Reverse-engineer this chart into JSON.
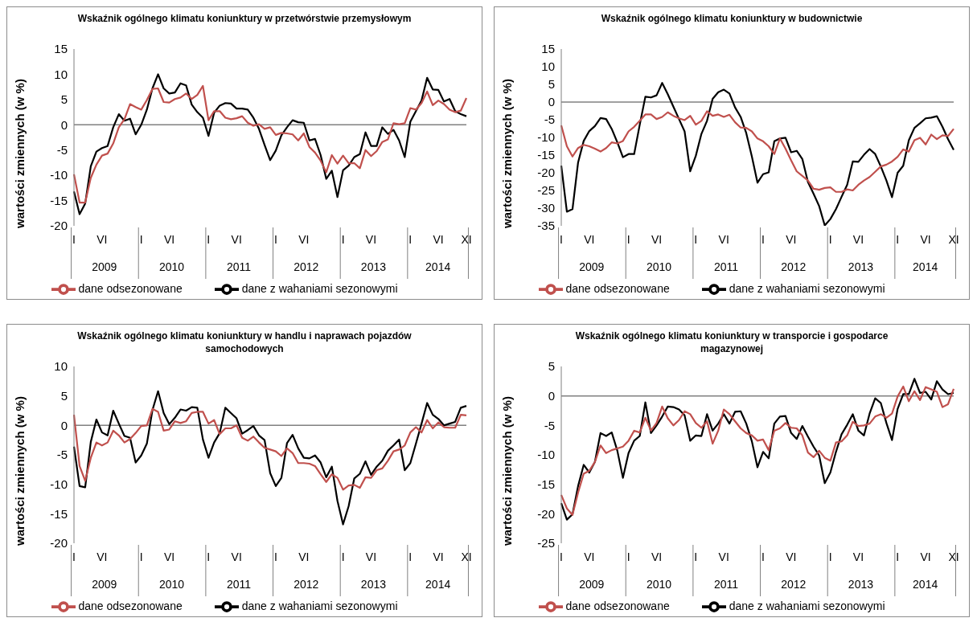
{
  "chart_data": [
    {
      "type": "line",
      "title": "Wskaźnik ogólnego klimatu koniunktury w przetwórstwie przemysłowym",
      "ylabel": "wartości zmiennych (w %)",
      "categories": [
        "I",
        null,
        null,
        null,
        null,
        "VI",
        null,
        null,
        null,
        null,
        null,
        null,
        "I",
        null,
        null,
        null,
        null,
        "VI",
        null,
        null,
        null,
        null,
        null,
        null,
        "I",
        null,
        null,
        null,
        null,
        "VI",
        null,
        null,
        null,
        null,
        null,
        null,
        "I",
        null,
        null,
        null,
        null,
        "VI",
        null,
        null,
        null,
        null,
        null,
        null,
        "I",
        null,
        null,
        null,
        null,
        "VI",
        null,
        null,
        null,
        null,
        null,
        null,
        "I",
        null,
        null,
        null,
        null,
        "VI",
        null,
        null,
        null,
        null,
        "XI"
      ],
      "annotations": [
        "2009",
        "2010",
        "2011",
        "2012",
        "2013",
        "2014"
      ],
      "series": [
        {
          "name": "dane z wahaniami sezonowymi",
          "color": "#000000",
          "values": [
            -13.2,
            -17.7,
            -15.6,
            -8.2,
            -5.3,
            -4.6,
            -4.2,
            -0.5,
            2.1,
            0.8,
            1.2,
            -1.9,
            0,
            3.0,
            7.2,
            10.0,
            7.2,
            6.2,
            6.4,
            8.2,
            7.8,
            4.0,
            2.5,
            1.4,
            -2.2,
            2.4,
            3.8,
            4.3,
            4.2,
            3.2,
            3.2,
            3.0,
            1.4,
            -0.8,
            -4.0,
            -7.0,
            -5.1,
            -2.1,
            -0.5,
            0.9,
            0.5,
            0.4,
            -3.1,
            -2.8,
            -6.0,
            -10.7,
            -9.1,
            -14.3,
            -9.0,
            -8.1,
            -6.4,
            -5.8,
            -1.5,
            -4.2,
            -4.2,
            -0.5,
            -1.8,
            -1.0,
            -3.1,
            -6.4,
            0.6,
            2.7,
            4.8,
            9.3,
            7.0,
            6.9,
            4.6,
            5.1,
            2.7,
            2.1,
            1.7
          ]
        },
        {
          "name": "dane odsezonowane",
          "color": "#c0504d",
          "values": [
            -9.8,
            -15.4,
            -15.4,
            -10.5,
            -7.9,
            -6.1,
            -5.7,
            -3.7,
            -0.5,
            1.1,
            4.1,
            3.5,
            3.0,
            4.9,
            7.1,
            7.2,
            4.5,
            4.4,
            5.1,
            5.4,
            6.2,
            5.1,
            5.9,
            7.7,
            0.9,
            2.7,
            2.7,
            1.4,
            1.1,
            1.3,
            1.7,
            0.4,
            -0.2,
            0.1,
            -0.8,
            -0.5,
            -2.0,
            -1.6,
            -1.7,
            -1.9,
            -3.1,
            -1.7,
            -4.4,
            -5.5,
            -7.1,
            -9.4,
            -6.0,
            -7.7,
            -6.1,
            -7.6,
            -7.6,
            -8.6,
            -5.0,
            -6.2,
            -5.2,
            -3.4,
            -2.9,
            0.3,
            0.1,
            0.3,
            3.3,
            3.0,
            4.3,
            6.6,
            3.9,
            4.8,
            4.1,
            3.0,
            2.5,
            2.8,
            5.3
          ]
        }
      ],
      "ylim": [
        -20,
        15
      ],
      "yticks": [
        -20,
        -15,
        -10,
        -5,
        0,
        5,
        10,
        15
      ],
      "legend": "bottom",
      "ref_lines": [
        {
          "axis": "y",
          "value": 0,
          "color": "#808080"
        }
      ]
    },
    {
      "type": "line",
      "title": "Wskaźnik ogólnego klimatu koniunktury w budownictwie",
      "ylabel": "wartości zmiennych (w %)",
      "categories": [
        "I",
        null,
        null,
        null,
        null,
        "VI",
        null,
        null,
        null,
        null,
        null,
        null,
        "I",
        null,
        null,
        null,
        null,
        "VI",
        null,
        null,
        null,
        null,
        null,
        null,
        "I",
        null,
        null,
        null,
        null,
        "VI",
        null,
        null,
        null,
        null,
        null,
        null,
        "I",
        null,
        null,
        null,
        null,
        "VI",
        null,
        null,
        null,
        null,
        null,
        null,
        "I",
        null,
        null,
        null,
        null,
        "VI",
        null,
        null,
        null,
        null,
        null,
        null,
        "I",
        null,
        null,
        null,
        null,
        "VI",
        null,
        null,
        null,
        null,
        "XI"
      ],
      "annotations": [
        "2009",
        "2010",
        "2011",
        "2012",
        "2013",
        "2014"
      ],
      "series": [
        {
          "name": "dane z wahaniami sezonowymi",
          "color": "#000000",
          "values": [
            -18.0,
            -31.0,
            -30.3,
            -17.1,
            -11.0,
            -8.2,
            -6.8,
            -4.5,
            -4.8,
            -7.6,
            -11.4,
            -15.6,
            -14.7,
            -14.7,
            -6.4,
            1.5,
            1.3,
            1.9,
            5.4,
            2.2,
            -1.3,
            -4.8,
            -8.3,
            -19.6,
            -15.2,
            -9.0,
            -5.3,
            0.9,
            2.8,
            3.5,
            2.4,
            -1.5,
            -4.2,
            -8.8,
            -15.4,
            -22.8,
            -20.4,
            -19.9,
            -11.1,
            -10.3,
            -10.1,
            -14.2,
            -13.8,
            -16.1,
            -22.6,
            -25.9,
            -29.4,
            -34.9,
            -33.1,
            -30.3,
            -26.8,
            -23.4,
            -16.8,
            -16.9,
            -14.9,
            -13.3,
            -14.7,
            -18.2,
            -22.2,
            -26.9,
            -20.0,
            -18.0,
            -10.8,
            -7.3,
            -6.0,
            -4.6,
            -4.4,
            -4.0,
            -7.0,
            -10.5,
            -13.5
          ]
        },
        {
          "name": "dane odsezonowane",
          "color": "#c0504d",
          "values": [
            -6.6,
            -12.5,
            -15.4,
            -13.0,
            -12.1,
            -12.5,
            -13.2,
            -14.0,
            -13.0,
            -11.4,
            -11.7,
            -11.0,
            -8.3,
            -7.0,
            -5.3,
            -3.5,
            -3.5,
            -4.8,
            -4.2,
            -2.9,
            -3.9,
            -4.6,
            -5.1,
            -3.9,
            -6.4,
            -5.3,
            -2.6,
            -3.9,
            -3.5,
            -4.2,
            -3.6,
            -5.7,
            -7.2,
            -7.3,
            -8.3,
            -10.3,
            -11.1,
            -12.5,
            -14.7,
            -10.3,
            -13.2,
            -16.5,
            -19.6,
            -20.9,
            -22.2,
            -24.5,
            -24.8,
            -24.3,
            -24.1,
            -25.4,
            -25.4,
            -24.7,
            -25.0,
            -23.4,
            -22.2,
            -21.2,
            -19.7,
            -18.2,
            -17.7,
            -16.8,
            -15.5,
            -13.4,
            -14.0,
            -10.8,
            -10.1,
            -12.0,
            -9.2,
            -10.5,
            -9.4,
            -9.6,
            -7.6
          ]
        }
      ],
      "ylim": [
        -35,
        15
      ],
      "yticks": [
        -35,
        -30,
        -25,
        -20,
        -15,
        -10,
        -5,
        0,
        5,
        10,
        15
      ],
      "legend": "bottom",
      "ref_lines": [
        {
          "axis": "y",
          "value": 0,
          "color": "#808080"
        }
      ]
    },
    {
      "type": "line",
      "title": "Wskaźnik ogólnego klimatu koniunktury w handlu i naprawach pojazdów samochodowych",
      "ylabel": "wartości zmiennych (w %)",
      "categories": [
        "I",
        null,
        null,
        null,
        null,
        "VI",
        null,
        null,
        null,
        null,
        null,
        null,
        "I",
        null,
        null,
        null,
        null,
        "VI",
        null,
        null,
        null,
        null,
        null,
        null,
        "I",
        null,
        null,
        null,
        null,
        "VI",
        null,
        null,
        null,
        null,
        null,
        null,
        "I",
        null,
        null,
        null,
        null,
        "VI",
        null,
        null,
        null,
        null,
        null,
        null,
        "I",
        null,
        null,
        null,
        null,
        "VI",
        null,
        null,
        null,
        null,
        null,
        null,
        "I",
        null,
        null,
        null,
        null,
        "VI",
        null,
        null,
        null,
        null,
        "XI"
      ],
      "annotations": [
        "2009",
        "2010",
        "2011",
        "2012",
        "2013",
        "2014"
      ],
      "series": [
        {
          "name": "dane z wahaniami sezonowymi",
          "color": "#000000",
          "values": [
            -3.6,
            -10.3,
            -10.5,
            -2.8,
            1.0,
            -1.2,
            -1.7,
            2.5,
            0.3,
            -1.8,
            -2.1,
            -6.3,
            -5.1,
            -3.1,
            2.6,
            5.8,
            2.1,
            0.2,
            1.3,
            2.7,
            2.5,
            3.1,
            3.0,
            -2.4,
            -5.5,
            -2.9,
            -1.3,
            3.0,
            2.1,
            1.2,
            -1.4,
            -0.8,
            -0.1,
            -1.7,
            -2.5,
            -8.1,
            -10.3,
            -8.9,
            -3.0,
            -1.6,
            -3.9,
            -5.5,
            -5.6,
            -5.1,
            -6.3,
            -8.8,
            -7.0,
            -12.8,
            -16.8,
            -13.7,
            -9.0,
            -8.2,
            -6.1,
            -8.4,
            -7.0,
            -6.0,
            -4.3,
            -3.4,
            -2.4,
            -7.6,
            -6.4,
            -3.1,
            0.3,
            3.8,
            1.8,
            1.1,
            0.0,
            0.3,
            0.6,
            3.0,
            3.3
          ]
        },
        {
          "name": "dane odsezonowane",
          "color": "#c0504d",
          "values": [
            1.8,
            -6.9,
            -9.4,
            -5.5,
            -2.9,
            -3.4,
            -2.9,
            -0.9,
            -1.7,
            -2.9,
            -2.3,
            -1.3,
            -0.1,
            0,
            2.8,
            2.3,
            -0.9,
            -0.7,
            0.7,
            0.4,
            0.7,
            2.1,
            2.3,
            2.3,
            0.3,
            0.9,
            -1.5,
            -0.5,
            -0.5,
            0,
            -2.1,
            -2.6,
            -1.9,
            -2.9,
            -3.8,
            -4.1,
            -4.4,
            -5.2,
            -3.9,
            -4.7,
            -6.4,
            -6.4,
            -6.5,
            -6.9,
            -8.3,
            -9.6,
            -8.3,
            -8.9,
            -10.9,
            -10.2,
            -10.1,
            -10.6,
            -8.8,
            -8.9,
            -7.6,
            -7.3,
            -6.0,
            -4.4,
            -4.1,
            -3.4,
            -1.2,
            -0.3,
            -1.2,
            0.9,
            -0.5,
            0.5,
            -0.3,
            -0.4,
            -0.4,
            1.8,
            1.7
          ]
        }
      ],
      "ylim": [
        -20,
        10
      ],
      "yticks": [
        -20,
        -15,
        -10,
        -5,
        0,
        5,
        10
      ],
      "legend": "bottom",
      "ref_lines": [
        {
          "axis": "y",
          "value": 0,
          "color": "#808080"
        }
      ]
    },
    {
      "type": "line",
      "title": "Wskaźnik ogólnego klimatu koniunktury w transporcie i gospodarce magazynowej",
      "ylabel": "wartości zmiennych (w %)",
      "categories": [
        "I",
        null,
        null,
        null,
        null,
        "VI",
        null,
        null,
        null,
        null,
        null,
        null,
        "I",
        null,
        null,
        null,
        null,
        "VI",
        null,
        null,
        null,
        null,
        null,
        null,
        "I",
        null,
        null,
        null,
        null,
        "VI",
        null,
        null,
        null,
        null,
        null,
        null,
        "I",
        null,
        null,
        null,
        null,
        "VI",
        null,
        null,
        null,
        null,
        null,
        null,
        "I",
        null,
        null,
        null,
        null,
        "VI",
        null,
        null,
        null,
        null,
        null,
        null,
        "I",
        null,
        null,
        null,
        null,
        "VI",
        null,
        null,
        null,
        null,
        "XI"
      ],
      "annotations": [
        "2009",
        "2010",
        "2011",
        "2012",
        "2013",
        "2014"
      ],
      "series": [
        {
          "name": "dane z wahaniami sezonowymi",
          "color": "#000000",
          "values": [
            -18.2,
            -21.0,
            -20.1,
            -15.3,
            -11.7,
            -13.0,
            -11.2,
            -6.3,
            -6.8,
            -6.2,
            -9.3,
            -13.9,
            -9.7,
            -7.6,
            -6.8,
            -1.1,
            -6.3,
            -5.0,
            -3.5,
            -1.8,
            -1.9,
            -2.3,
            -3.3,
            -7.6,
            -6.7,
            -6.8,
            -3.1,
            -5.9,
            -4.7,
            -3.1,
            -4.7,
            -2.7,
            -2.6,
            -4.7,
            -7.7,
            -12.1,
            -9.5,
            -10.6,
            -4.7,
            -3.5,
            -3.4,
            -6.3,
            -7.3,
            -5.1,
            -6.9,
            -8.6,
            -10.1,
            -14.8,
            -13.0,
            -9.5,
            -6.5,
            -4.9,
            -3.1,
            -5.9,
            -6.7,
            -3.0,
            -0.4,
            -1.2,
            -4.6,
            -7.5,
            -2.2,
            0.3,
            0.3,
            2.9,
            0.5,
            0.7,
            -0.6,
            2.5,
            1.1,
            0.3,
            0.5
          ]
        },
        {
          "name": "dane odsezonowane",
          "color": "#c0504d",
          "values": [
            -16.8,
            -19.1,
            -20.2,
            -16.4,
            -13.2,
            -12.7,
            -11.2,
            -8.4,
            -9.7,
            -9.2,
            -8.9,
            -8.6,
            -7.6,
            -5.9,
            -6.2,
            -3.7,
            -5.9,
            -4.6,
            -1.8,
            -3.8,
            -5.0,
            -4.1,
            -2.6,
            -3.1,
            -4.6,
            -5.4,
            -4.3,
            -8.1,
            -5.9,
            -2.3,
            -3.1,
            -4.3,
            -5.5,
            -6.3,
            -6.7,
            -7.6,
            -7.4,
            -9.2,
            -5.9,
            -5.5,
            -4.6,
            -5.4,
            -5.5,
            -6.7,
            -9.6,
            -10.4,
            -9.3,
            -10.5,
            -11.0,
            -7.9,
            -7.7,
            -6.7,
            -4.4,
            -5.1,
            -5.0,
            -4.7,
            -3.5,
            -3.1,
            -3.7,
            -3.0,
            -0.1,
            1.6,
            -0.9,
            0.8,
            -0.7,
            1.5,
            1.1,
            0.7,
            -1.9,
            -1.4,
            1.2
          ]
        }
      ],
      "ylim": [
        -25,
        5
      ],
      "yticks": [
        -25,
        -20,
        -15,
        -10,
        -5,
        0,
        5
      ],
      "legend": "bottom",
      "ref_lines": [
        {
          "axis": "y",
          "value": 0,
          "color": "#808080"
        }
      ]
    }
  ]
}
